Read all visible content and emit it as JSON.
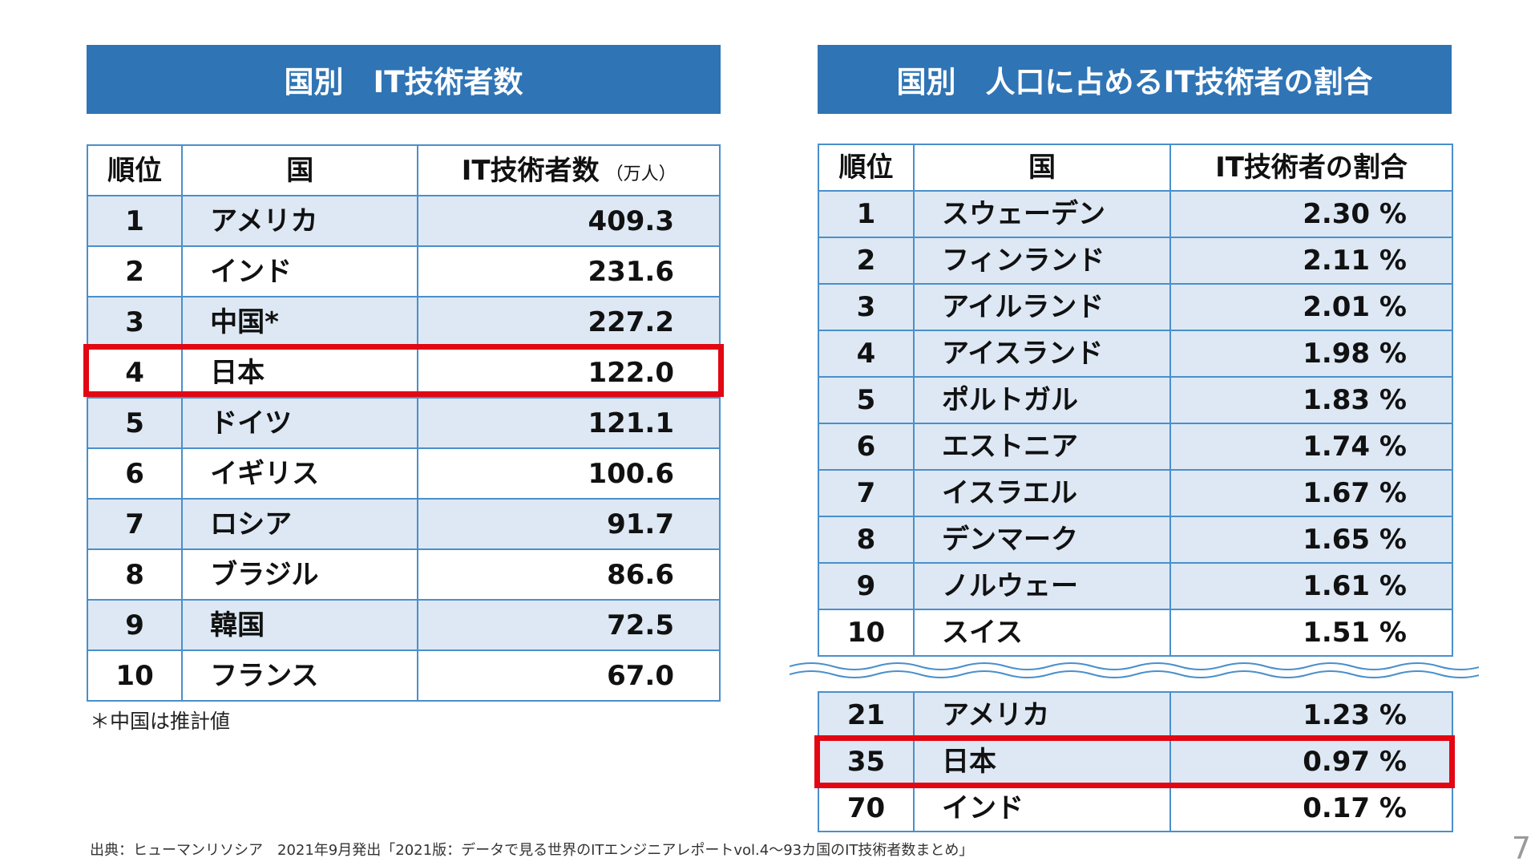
{
  "left": {
    "title": "国別　IT技術者数",
    "headers": {
      "rank": "順位",
      "country": "国",
      "value": "IT技術者数",
      "unit": "（万人）"
    },
    "rows": [
      {
        "rank": "1",
        "country": "アメリカ",
        "value": "409.3"
      },
      {
        "rank": "2",
        "country": "インド",
        "value": "231.6"
      },
      {
        "rank": "3",
        "country": "中国*",
        "value": "227.2"
      },
      {
        "rank": "4",
        "country": "日本",
        "value": "122.0"
      },
      {
        "rank": "5",
        "country": "ドイツ",
        "value": "121.1"
      },
      {
        "rank": "6",
        "country": "イギリス",
        "value": "100.6"
      },
      {
        "rank": "7",
        "country": "ロシア",
        "value": "91.7"
      },
      {
        "rank": "8",
        "country": "ブラジル",
        "value": "86.6"
      },
      {
        "rank": "9",
        "country": "韓国",
        "value": "72.5"
      },
      {
        "rank": "10",
        "country": "フランス",
        "value": "67.0"
      }
    ],
    "footnote": "＊中国は推計値"
  },
  "right": {
    "title": "国別　人口に占めるIT技術者の割合",
    "headers": {
      "rank": "順位",
      "country": "国",
      "value": "IT技術者の割合"
    },
    "rows": [
      {
        "rank": "1",
        "country": "スウェーデン",
        "value": "2.30 %"
      },
      {
        "rank": "2",
        "country": "フィンランド",
        "value": "2.11 %"
      },
      {
        "rank": "3",
        "country": "アイルランド",
        "value": "2.01 %"
      },
      {
        "rank": "4",
        "country": "アイスランド",
        "value": "1.98 %"
      },
      {
        "rank": "5",
        "country": "ポルトガル",
        "value": "1.83 %"
      },
      {
        "rank": "6",
        "country": "エストニア",
        "value": "1.74 %"
      },
      {
        "rank": "7",
        "country": "イスラエル",
        "value": "1.67 %"
      },
      {
        "rank": "8",
        "country": "デンマーク",
        "value": "1.65 %"
      },
      {
        "rank": "9",
        "country": "ノルウェー",
        "value": "1.61 %"
      },
      {
        "rank": "10",
        "country": "スイス",
        "value": "1.51 %"
      }
    ],
    "rows_extra": [
      {
        "rank": "21",
        "country": "アメリカ",
        "value": "1.23 %"
      },
      {
        "rank": "35",
        "country": "日本",
        "value": "0.97 %"
      },
      {
        "rank": "70",
        "country": "インド",
        "value": "0.17 %"
      }
    ]
  },
  "source": "出典：ヒューマンリソシア　2021年9月発出「2021版：データで見る世界のITエンジニアレポートvol.4～93カ国のIT技術者数まとめ」",
  "page_number": "7",
  "colors": {
    "banner": "#2f74b5",
    "row_shade": "#dde8f4",
    "border": "#4a8fcb",
    "highlight": "#e30613"
  }
}
